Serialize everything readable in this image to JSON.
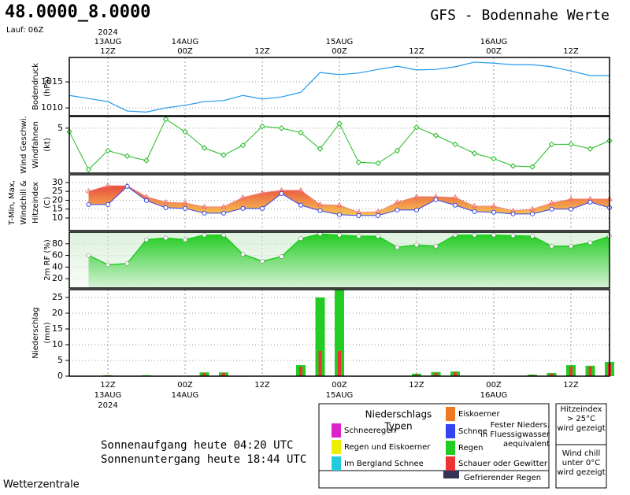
{
  "header": {
    "coords": "48.0000_8.0000",
    "run": "Lauf: 06Z",
    "title": "GFS - Bodennahe Werte"
  },
  "time_axis": {
    "xlim": [
      0,
      28
    ],
    "ticks": [
      {
        "value": 2,
        "hour": "12Z",
        "date": "13AUG",
        "year": "2024"
      },
      {
        "value": 6,
        "hour": "00Z",
        "date": "14AUG"
      },
      {
        "value": 10,
        "hour": "12Z"
      },
      {
        "value": 14,
        "hour": "00Z",
        "date": "15AUG"
      },
      {
        "value": 18,
        "hour": "12Z"
      },
      {
        "value": 22,
        "hour": "00Z",
        "date": "16AUG"
      },
      {
        "value": 26,
        "hour": "12Z"
      }
    ]
  },
  "chart_data": [
    {
      "type": "line",
      "ylabel": [
        {
          "text": "Bodendruck",
          "color": "#000000"
        },
        {
          "text": "(hPa)",
          "color": "#000000"
        }
      ],
      "ylim": [
        1008.5,
        1019.7
      ],
      "yticks": [
        1010,
        1015
      ],
      "color": "#2299ee",
      "grid": true,
      "values": [
        1012.4,
        1011.8,
        1011.2,
        1009.4,
        1009.2,
        1010,
        1010.5,
        1011.2,
        1011.4,
        1012.4,
        1011.7,
        1012.1,
        1013,
        1016.8,
        1016.4,
        1016.7,
        1017.4,
        1018,
        1017.3,
        1017.4,
        1017.9,
        1018.8,
        1018.6,
        1018.3,
        1018.3,
        1017.9,
        1017.1,
        1016.2,
        1016.2
      ]
    },
    {
      "type": "line_markers",
      "ylabel": [
        {
          "text": "Wind Geschwi.",
          "color": "#22aa22"
        },
        {
          "text": "Windfahnen",
          "color": "#000000"
        },
        {
          "text": "(kt)",
          "color": "#000000"
        }
      ],
      "ylim": [
        0,
        6.3
      ],
      "yticks": [
        5
      ],
      "color": "#22bb22",
      "grid": true,
      "values": [
        4.6,
        0.4,
        2.5,
        1.9,
        1.4,
        6.0,
        4.6,
        2.8,
        2.0,
        3.1,
        5.2,
        5.0,
        4.5,
        2.7,
        5.5,
        1.2,
        1.1,
        2.5,
        5.1,
        4.2,
        3.2,
        2.2,
        1.6,
        0.8,
        0.7,
        3.2,
        3.2,
        2.7,
        3.6
      ]
    },
    {
      "type": "band",
      "ylabel": [
        {
          "text": "T-Min, Max,",
          "color": "#3344ee"
        },
        {
          "text": "Windchill &",
          "color": "#9944cc"
        },
        {
          "text": "Hitzeindex",
          "color": "#ee7733"
        },
        {
          "text": "(C)",
          "color": "#000000"
        }
      ],
      "ylim": [
        2.9,
        34.4
      ],
      "yticks": [
        10,
        15,
        20,
        25,
        30
      ],
      "color": "#3344ee",
      "fill": "#f08030",
      "grid": true,
      "high": [
        null,
        25.1,
        28.2,
        28.2,
        22,
        18.9,
        18.5,
        16.3,
        16.3,
        21.6,
        24.2,
        25.6,
        25.6,
        17.6,
        17.2,
        13.2,
        13.6,
        18.9,
        22,
        22,
        21.6,
        16.7,
        16.7,
        14.1,
        15,
        18.5,
        20.7,
        20.7,
        20.7
      ],
      "low": [
        null,
        17.6,
        17.6,
        27.8,
        19.8,
        15.8,
        15.4,
        12.7,
        12.7,
        15.4,
        15.4,
        23.8,
        17.2,
        14.1,
        11.9,
        11.4,
        11.4,
        14.5,
        14.5,
        20.3,
        17.2,
        13.6,
        13.2,
        12.3,
        12.3,
        15,
        15,
        18.9,
        15.8
      ]
    },
    {
      "type": "area",
      "ylabel": [
        {
          "text": "2m RF (%)",
          "color": "#22aa22"
        }
      ],
      "ylim": [
        4,
        100
      ],
      "yticks": [
        20,
        40,
        60,
        80
      ],
      "color": "#22cc22",
      "grid": true,
      "values": [
        null,
        60,
        44,
        46,
        87,
        90,
        87,
        95,
        95,
        62,
        50,
        58,
        89,
        97,
        95,
        93,
        93,
        74,
        78,
        76,
        95,
        95,
        95,
        94,
        93,
        76,
        76,
        82,
        93
      ]
    },
    {
      "type": "bar",
      "ylabel": [
        {
          "text": "Niederschlag",
          "color": "#000000"
        },
        {
          "text": "(mm)",
          "color": "#000000"
        }
      ],
      "ylim": [
        0,
        27.5
      ],
      "yticks": [
        0,
        5,
        10,
        15,
        20,
        25
      ],
      "grid": true,
      "series": [
        {
          "name": "Regen",
          "color": "#22cc22",
          "values": [
            0,
            0,
            0.3,
            0,
            0.3,
            0,
            0,
            1.2,
            1.2,
            0,
            0,
            0,
            3.5,
            25,
            27.5,
            0,
            0,
            0,
            0.8,
            1.3,
            1.5,
            0,
            0,
            0,
            0.5,
            1,
            3.5,
            3.3,
            4.5
          ]
        },
        {
          "name": "Schauer oder Gewitter",
          "color": "#ee3333",
          "values": [
            0,
            0,
            0.3,
            0,
            0,
            0,
            0,
            1,
            1,
            0,
            0,
            0,
            3,
            8,
            8,
            0,
            0,
            0,
            0.6,
            1,
            1.2,
            0,
            0,
            0,
            0.4,
            0.8,
            3,
            3,
            4
          ]
        }
      ]
    }
  ],
  "sun": {
    "rise": "Sonnenaufgang heute 04:20 UTC",
    "set": "Sonnenuntergang heute 18:44 UTC"
  },
  "legend": {
    "title": [
      "Niederschlags",
      "Typen"
    ],
    "note": [
      "Fester Nieders.",
      "in Fluessigwasser",
      "aequivalent"
    ],
    "items": [
      {
        "label": "Schneeregen",
        "color": "#dd22cc"
      },
      {
        "label": "Regen und Eiskoerner",
        "color": "#eeee00"
      },
      {
        "label": "Im Bergland Schnee",
        "color": "#22ccdd"
      },
      {
        "label": "Eiskoerner",
        "color": "#f07820"
      },
      {
        "label": "Schnee",
        "color": "#3344ee"
      },
      {
        "label": "Regen",
        "color": "#22cc22"
      },
      {
        "label": "Schauer oder Gewitter",
        "color": "#ee3333"
      },
      {
        "label": "Gefrierender Regen",
        "color": "#333355"
      }
    ],
    "heat": {
      "lines": [
        "Hitzeindex",
        "> 25°C",
        "wird gezeigt"
      ],
      "color": "#f08040"
    },
    "chill": {
      "lines": [
        "Wind chill",
        "unter 0°C",
        "wird gezeigt"
      ],
      "color": "#8844dd"
    }
  },
  "footer": "Wetterzentrale"
}
